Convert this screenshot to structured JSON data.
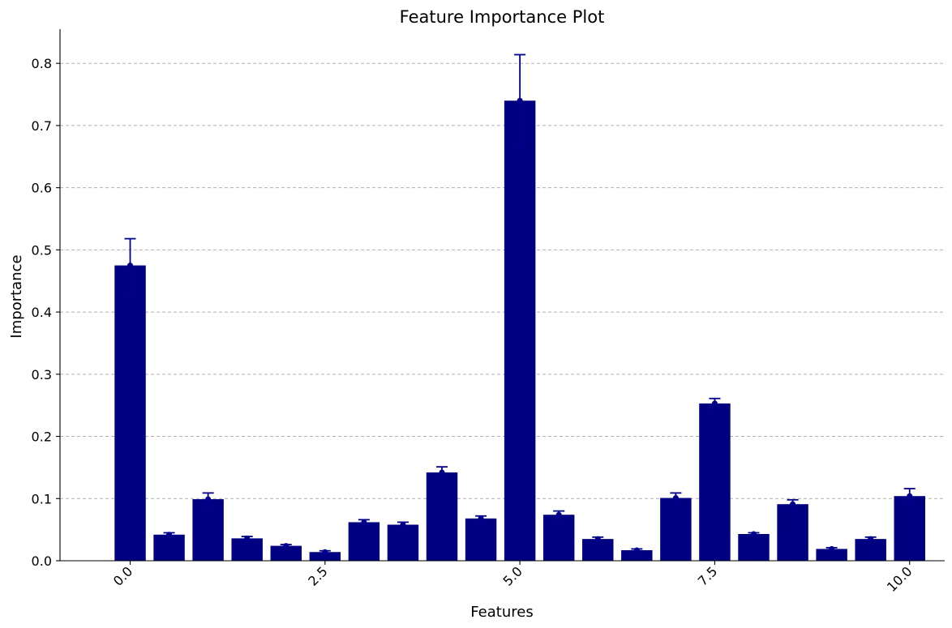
{
  "chart_data": {
    "type": "bar",
    "title": "Feature Importance Plot",
    "xlabel": "Features",
    "ylabel": "Importance",
    "bar_color": "#000080",
    "error_color": "#00008b",
    "grid": "horizontal dashed",
    "xlim": [
      -0.9,
      10.45
    ],
    "ylim": [
      0,
      0.855
    ],
    "x_ticks": [
      {
        "value": 0,
        "label": "0.0"
      },
      {
        "value": 2.5,
        "label": "2.5"
      },
      {
        "value": 5,
        "label": "5.0"
      },
      {
        "value": 7.5,
        "label": "7.5"
      },
      {
        "value": 10,
        "label": "10.0"
      }
    ],
    "y_ticks": [
      {
        "value": 0,
        "label": "0.0"
      },
      {
        "value": 0.1,
        "label": "0.1"
      },
      {
        "value": 0.2,
        "label": "0.2"
      },
      {
        "value": 0.3,
        "label": "0.3"
      },
      {
        "value": 0.4,
        "label": "0.4"
      },
      {
        "value": 0.5,
        "label": "0.5"
      },
      {
        "value": 0.6,
        "label": "0.6"
      },
      {
        "value": 0.7,
        "label": "0.7"
      },
      {
        "value": 0.8,
        "label": "0.8"
      }
    ],
    "bar_width": 0.4,
    "x": [
      0,
      0.5,
      1,
      1.5,
      2,
      2.5,
      3,
      3.5,
      4,
      4.5,
      5,
      5.5,
      6,
      6.5,
      7,
      7.5,
      8,
      8.5,
      9,
      9.5,
      10
    ],
    "values": [
      0.475,
      0.042,
      0.099,
      0.036,
      0.024,
      0.014,
      0.062,
      0.058,
      0.142,
      0.068,
      0.74,
      0.074,
      0.035,
      0.017,
      0.101,
      0.253,
      0.043,
      0.091,
      0.019,
      0.035,
      0.104
    ],
    "errors": [
      0.043,
      0.003,
      0.01,
      0.003,
      0.002,
      0.002,
      0.004,
      0.004,
      0.009,
      0.004,
      0.074,
      0.006,
      0.003,
      0.002,
      0.008,
      0.008,
      0.002,
      0.007,
      0.002,
      0.003,
      0.012
    ]
  }
}
